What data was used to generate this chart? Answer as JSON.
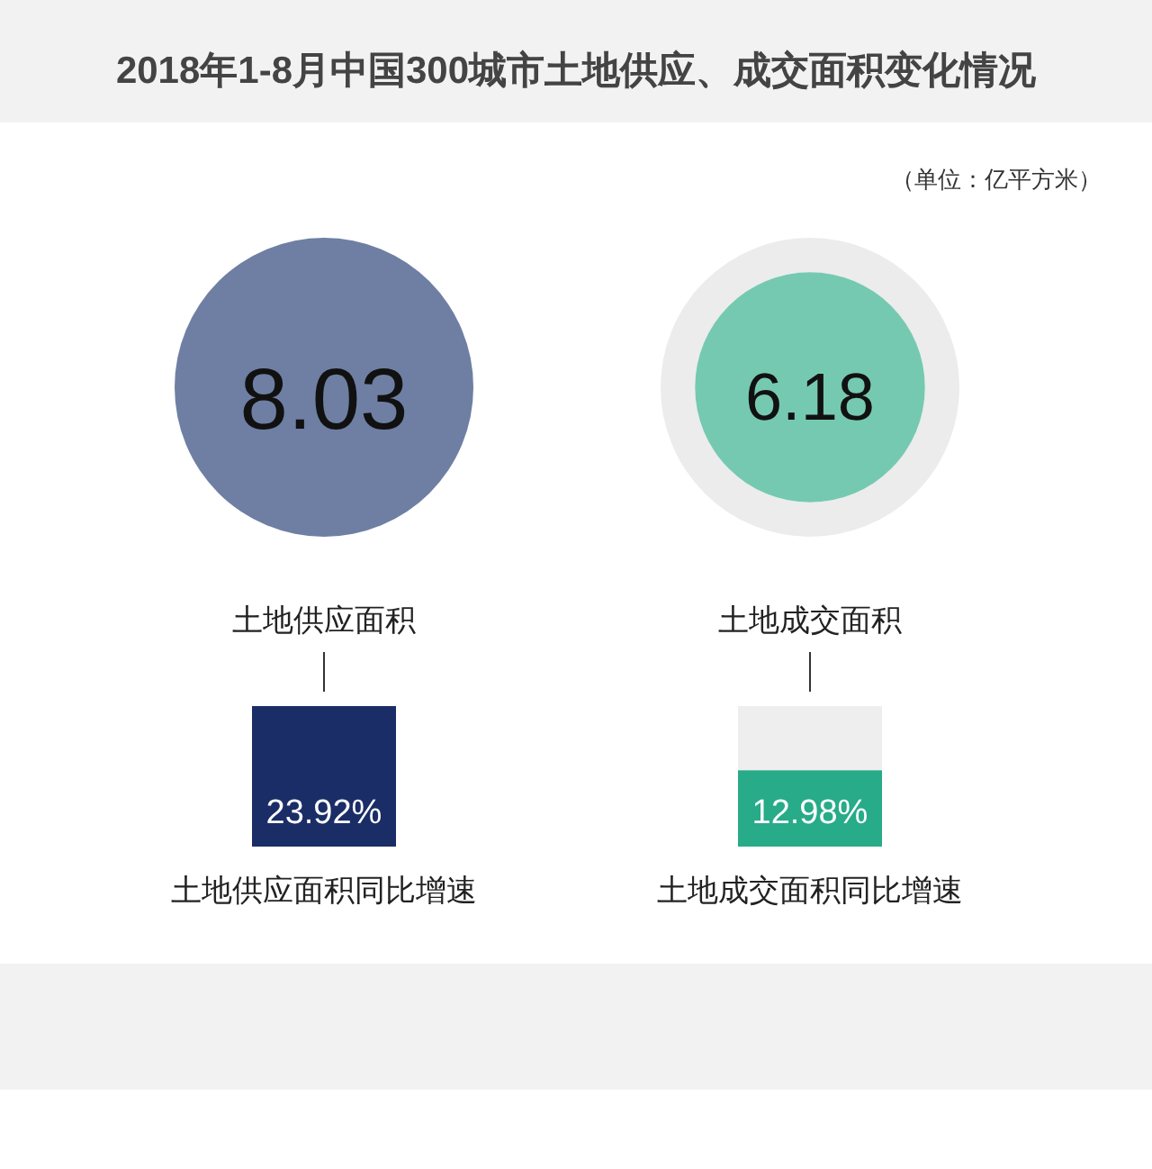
{
  "chart_data": [
    {
      "type": "other",
      "title": "2018年1-8月中国300城市土地供应、成交面积变化情况",
      "subtitle": "（单位：亿平方米）",
      "categories": [
        "土地供应面积",
        "土地成交面积"
      ],
      "values": [
        8.03,
        6.18
      ],
      "colors": [
        "#6e7fa3",
        "#76c9b1"
      ],
      "data_labels": true
    },
    {
      "type": "bar",
      "categories": [
        "土地供应面积同比增速",
        "土地成交面积同比增速"
      ],
      "values": [
        23.92,
        12.98
      ],
      "value_labels": [
        "23.92%",
        "12.98%"
      ],
      "colors": [
        "#1a2d66",
        "#27ab89"
      ]
    }
  ]
}
